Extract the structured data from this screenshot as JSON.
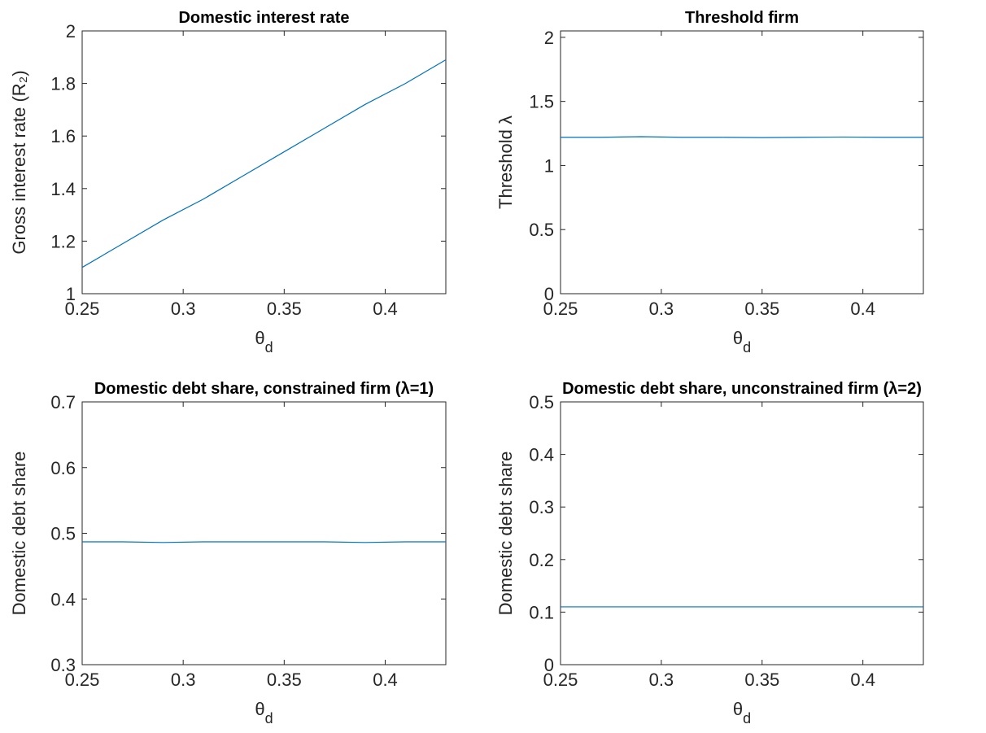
{
  "chart_data": [
    {
      "type": "line",
      "title": "Domestic interest rate",
      "ylabel": "Gross interest rate (R₂)",
      "xlabel": {
        "symbol": "θ",
        "subscript": "d"
      },
      "x": [
        0.25,
        0.27,
        0.29,
        0.31,
        0.33,
        0.35,
        0.37,
        0.39,
        0.41,
        0.43
      ],
      "series": [
        {
          "color": "#0072bd",
          "values": [
            1.1,
            1.19,
            1.28,
            1.36,
            1.45,
            1.54,
            1.63,
            1.72,
            1.8,
            1.89
          ]
        }
      ],
      "xlim": [
        0.25,
        0.43
      ],
      "xticks": [
        0.25,
        0.3,
        0.35,
        0.4
      ],
      "ylim": [
        1,
        2
      ],
      "yticks": [
        1,
        1.2,
        1.4,
        1.6,
        1.8,
        2
      ]
    },
    {
      "type": "line",
      "title": "Threshold firm",
      "ylabel": "Threshold λ",
      "xlabel": {
        "symbol": "θ",
        "subscript": "d"
      },
      "x": [
        0.25,
        0.27,
        0.29,
        0.31,
        0.33,
        0.35,
        0.37,
        0.39,
        0.41,
        0.43
      ],
      "series": [
        {
          "color": "#0072bd",
          "values": [
            1.22,
            1.22,
            1.225,
            1.22,
            1.22,
            1.218,
            1.22,
            1.222,
            1.22,
            1.22
          ]
        }
      ],
      "xlim": [
        0.25,
        0.43
      ],
      "xticks": [
        0.25,
        0.3,
        0.35,
        0.4
      ],
      "ylim": [
        0,
        2.05
      ],
      "yticks": [
        0,
        0.5,
        1,
        1.5,
        2
      ]
    },
    {
      "type": "line",
      "title": "Domestic debt share, constrained firm (λ=1)",
      "ylabel": "Domestic debt share",
      "xlabel": {
        "symbol": "θ",
        "subscript": "d"
      },
      "x": [
        0.25,
        0.27,
        0.29,
        0.31,
        0.33,
        0.35,
        0.37,
        0.39,
        0.41,
        0.43
      ],
      "series": [
        {
          "color": "#0072bd",
          "values": [
            0.487,
            0.487,
            0.486,
            0.487,
            0.487,
            0.487,
            0.487,
            0.486,
            0.487,
            0.487
          ]
        }
      ],
      "xlim": [
        0.25,
        0.43
      ],
      "xticks": [
        0.25,
        0.3,
        0.35,
        0.4
      ],
      "ylim": [
        0.3,
        0.7
      ],
      "yticks": [
        0.3,
        0.4,
        0.5,
        0.6,
        0.7
      ]
    },
    {
      "type": "line",
      "title": "Domestic debt share, unconstrained firm (λ=2)",
      "ylabel": "Domestic debt share",
      "xlabel": {
        "symbol": "θ",
        "subscript": "d"
      },
      "x": [
        0.25,
        0.27,
        0.29,
        0.31,
        0.33,
        0.35,
        0.37,
        0.39,
        0.41,
        0.43
      ],
      "series": [
        {
          "color": "#0072bd",
          "values": [
            0.11,
            0.11,
            0.11,
            0.11,
            0.11,
            0.11,
            0.11,
            0.11,
            0.11,
            0.11
          ]
        }
      ],
      "xlim": [
        0.25,
        0.43
      ],
      "xticks": [
        0.25,
        0.3,
        0.35,
        0.4
      ],
      "ylim": [
        0,
        0.5
      ],
      "yticks": [
        0,
        0.1,
        0.2,
        0.3,
        0.4,
        0.5
      ]
    }
  ]
}
